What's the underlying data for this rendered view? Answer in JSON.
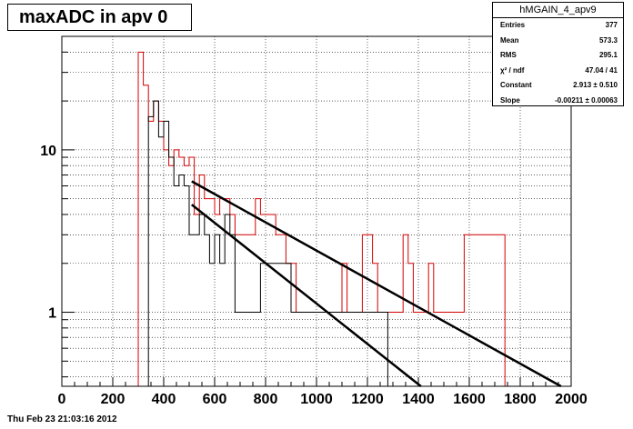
{
  "plot_title": "maxADC in apv 0",
  "footer": {
    "date": "Thu Feb 23 21:03:16 2012"
  },
  "stats": {
    "title": "hMGAIN_4_apv9",
    "rows": [
      {
        "label": "Entries",
        "value": "377"
      },
      {
        "label": "Mean",
        "value": "573.3"
      },
      {
        "label": "RMS",
        "value": "295.1"
      },
      {
        "label": "χ² / ndf",
        "value": "47.04 / 41"
      },
      {
        "label": "Constant",
        "value": "2.913 ± 0.510"
      },
      {
        "label": "Slope",
        "value": "-0.00211 ± 0.00063"
      }
    ]
  },
  "chart_data": {
    "type": "line",
    "xlim": [
      0,
      2000
    ],
    "ylim": [
      0.35,
      50
    ],
    "yscale": "log",
    "grid": true,
    "x_ticks": [
      "0",
      "200",
      "400",
      "600",
      "800",
      "1000",
      "1200",
      "1400",
      "1600",
      "1800",
      "2000"
    ],
    "y_ticks": [
      "1",
      "10"
    ],
    "bin_width": 20,
    "series": [
      {
        "style": "step",
        "color": "#d40000",
        "bin_edges_start": 300,
        "values": [
          40,
          25,
          15,
          20,
          15,
          10,
          8,
          10,
          9,
          8,
          9,
          4,
          7,
          5,
          5,
          4,
          5,
          5,
          4,
          3,
          3,
          3,
          3,
          5,
          4,
          4,
          4,
          3,
          3,
          2,
          2,
          1,
          1,
          1,
          1,
          1,
          1,
          1,
          1,
          1,
          2,
          1,
          1,
          1,
          3,
          3,
          2,
          1,
          1,
          1,
          1,
          1,
          3,
          2,
          1,
          1,
          1,
          2,
          1,
          1,
          1,
          1,
          1,
          1,
          3,
          3,
          3,
          3,
          3,
          3,
          3,
          3
        ]
      },
      {
        "style": "step",
        "color": "#000000",
        "bin_edges_start": 300,
        "values": [
          0,
          0,
          16,
          20,
          12,
          15,
          9,
          6,
          7,
          6,
          3,
          3,
          4,
          3,
          2,
          3,
          2,
          4,
          3,
          1,
          1,
          1,
          1,
          1,
          2,
          2,
          2,
          2,
          2,
          2,
          1,
          1,
          1,
          1,
          1,
          1,
          1,
          1,
          1,
          1,
          1,
          1,
          1,
          1,
          1,
          1,
          1,
          1,
          1
        ]
      },
      {
        "style": "fit",
        "color": "#000000",
        "x": [
          510,
          1960
        ],
        "y": [
          6.4,
          0.35
        ]
      },
      {
        "style": "fit",
        "color": "#000000",
        "x": [
          510,
          1410
        ],
        "y": [
          4.6,
          0.35
        ]
      }
    ]
  }
}
